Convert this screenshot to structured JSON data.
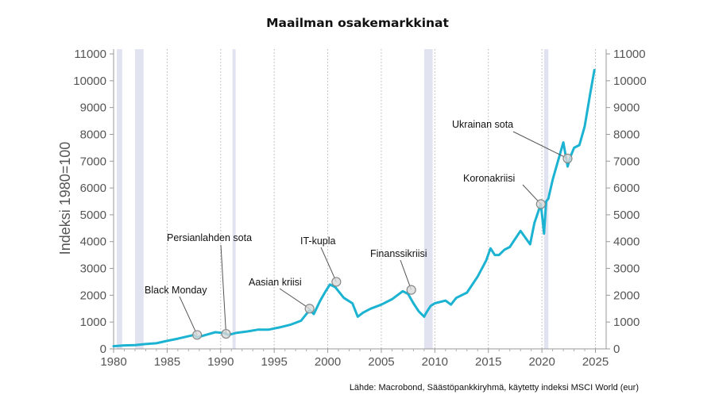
{
  "chart_data": {
    "type": "line",
    "title": "Maailman osakemarkkinat",
    "ylabel": "Indeksi 1980=100",
    "xlim": [
      1980,
      2026
    ],
    "ylim": [
      0,
      11000
    ],
    "x_ticks": [
      1980,
      1985,
      1990,
      1995,
      2000,
      2005,
      2010,
      2015,
      2020,
      2025
    ],
    "y_ticks": [
      0,
      1000,
      2000,
      3000,
      4000,
      5000,
      6000,
      7000,
      8000,
      9000,
      10000,
      11000
    ],
    "line_color": "#1bb3d1",
    "shade_color": "#e2e3f0",
    "series": [
      {
        "x": [
          1980,
          1981,
          1982,
          1983,
          1984,
          1985,
          1986,
          1987.5,
          1987.8,
          1988.5,
          1989.5,
          1990.3,
          1990.7,
          1991.5,
          1992.5,
          1993.5,
          1994.5,
          1995.5,
          1996.5,
          1997.5,
          1998.3,
          1998.7,
          1999.3,
          1999.8,
          2000.2,
          2000.7,
          2001.5,
          2002.3,
          2002.8,
          2003.3,
          2004,
          2005,
          2006,
          2007,
          2007.5,
          2008,
          2008.5,
          2009,
          2009.2,
          2009.6,
          2010,
          2011,
          2011.5,
          2012,
          2013,
          2014,
          2014.8,
          2015.2,
          2015.6,
          2016,
          2016.5,
          2017,
          2018,
          2018.9,
          2019.3,
          2019.9,
          2020.2,
          2020.4,
          2020.6,
          2021,
          2021.5,
          2022,
          2022.4,
          2022.7,
          2023,
          2023.5,
          2024,
          2024.5,
          2024.9
        ],
        "y": [
          100,
          130,
          140,
          180,
          210,
          300,
          380,
          520,
          430,
          510,
          620,
          590,
          520,
          600,
          650,
          720,
          720,
          800,
          900,
          1050,
          1450,
          1300,
          1800,
          2150,
          2400,
          2300,
          1900,
          1700,
          1200,
          1350,
          1500,
          1650,
          1850,
          2150,
          2050,
          1700,
          1400,
          1200,
          1350,
          1600,
          1700,
          1800,
          1650,
          1900,
          2100,
          2700,
          3300,
          3750,
          3500,
          3500,
          3700,
          3800,
          4400,
          3900,
          4700,
          5400,
          4300,
          5500,
          5600,
          6300,
          7000,
          7700,
          6800,
          7200,
          7500,
          7600,
          8300,
          9500,
          10400
        ]
      }
    ],
    "shaded_periods": [
      [
        1980.3,
        1980.8
      ],
      [
        1982.0,
        1982.8
      ],
      [
        1991.1,
        1991.4
      ],
      [
        2009.0,
        2009.8
      ],
      [
        2020.2,
        2020.6
      ]
    ],
    "annotations": [
      {
        "label": "Black Monday",
        "x": 1987.8,
        "y": 520
      },
      {
        "label": "Persianlahden sota",
        "x": 1990.5,
        "y": 560
      },
      {
        "label": "Aasian kriisi",
        "x": 1998.3,
        "y": 1500
      },
      {
        "label": "IT-kupla",
        "x": 2000.8,
        "y": 2500
      },
      {
        "label": "Finanssikriisi",
        "x": 2007.8,
        "y": 2200
      },
      {
        "label": "Koronakriisi",
        "x": 2019.9,
        "y": 5400
      },
      {
        "label": "Ukrainan sota",
        "x": 2022.4,
        "y": 7100
      }
    ],
    "source": "Lähde: Macrobond, Säästöpankkiryhmä, käytetty indeksi MSCI World (eur)"
  }
}
